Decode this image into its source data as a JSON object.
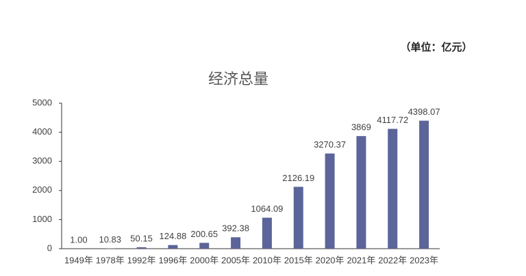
{
  "chart_data": {
    "type": "bar",
    "title": "经济总量",
    "unit_note": "（单位：亿元）",
    "categories": [
      "1949年",
      "1978年",
      "1992年",
      "1996年",
      "2000年",
      "2005年",
      "2010年",
      "2015年",
      "2020年",
      "2021年",
      "2022年",
      "2023年"
    ],
    "values": [
      1,
      10.83,
      50.15,
      124.88,
      200.65,
      392.38,
      1064.09,
      2126.19,
      3270.37,
      3869,
      4117.72,
      4398.07
    ],
    "value_labels": [
      "1.00",
      "10.83",
      "50.15",
      "124.88",
      "200.65",
      "392.38",
      "1064.09",
      "2126.19",
      "3270.37",
      "3869",
      "4117.72",
      "4398.07"
    ],
    "color": "#5b6599",
    "ylim": [
      0,
      5000
    ],
    "yticks": [
      0,
      1000,
      2000,
      3000,
      4000,
      5000
    ],
    "grid": false
  }
}
